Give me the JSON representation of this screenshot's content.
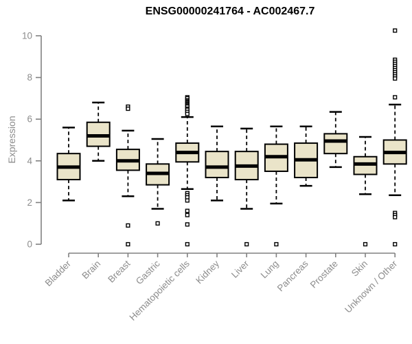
{
  "chart_data": {
    "type": "boxplot",
    "title": "ENSG00000241764 - AC002467.7",
    "ylabel": "Expression",
    "xlabel": "",
    "ylim": [
      0,
      10
    ],
    "yticks": [
      0,
      2,
      4,
      6,
      8,
      10
    ],
    "grid": false,
    "legend": "none",
    "background": "#ffffff",
    "colors": {
      "box_fill": "#eae4c9",
      "box_border": "#000000",
      "median": "#000000",
      "whisker": "#000000",
      "outlier_stroke": "#000000",
      "outlier_fill": "#ffffff",
      "axis": "#808080",
      "tick_label": "#8c8c8c",
      "title": "#000000"
    },
    "categories": [
      "Bladder",
      "Brain",
      "Breast",
      "Gastric",
      "Hematopoietic cells",
      "Kidney",
      "Liver",
      "Lung",
      "Pancreas",
      "Prostate",
      "Skin",
      "Unknown / Other"
    ],
    "boxes": [
      {
        "category": "Bladder",
        "whisker_low": 2.1,
        "q1": 3.1,
        "median": 3.7,
        "q3": 4.35,
        "whisker_high": 5.6,
        "outliers": []
      },
      {
        "category": "Brain",
        "whisker_low": 4.0,
        "q1": 4.7,
        "median": 5.2,
        "q3": 5.85,
        "whisker_high": 6.8,
        "outliers": []
      },
      {
        "category": "Breast",
        "whisker_low": 2.3,
        "q1": 3.55,
        "median": 4.0,
        "q3": 4.55,
        "whisker_high": 5.45,
        "outliers": [
          6.6,
          6.5,
          0.9,
          0
        ]
      },
      {
        "category": "Gastric",
        "whisker_low": 1.7,
        "q1": 2.85,
        "median": 3.4,
        "q3": 3.85,
        "whisker_high": 5.05,
        "outliers": [
          1.0
        ]
      },
      {
        "category": "Hematopoietic cells",
        "whisker_low": 2.65,
        "q1": 3.95,
        "median": 4.4,
        "q3": 4.85,
        "whisker_high": 6.1,
        "outliers": [
          7.05,
          7.0,
          6.9,
          6.85,
          6.8,
          6.75,
          6.7,
          6.65,
          6.6,
          6.5,
          6.45,
          6.35,
          6.25,
          2.45,
          2.35,
          2.25,
          2.1,
          1.6,
          1.4,
          0.95,
          0
        ]
      },
      {
        "category": "Kidney",
        "whisker_low": 2.1,
        "q1": 3.2,
        "median": 3.7,
        "q3": 4.45,
        "whisker_high": 5.65,
        "outliers": []
      },
      {
        "category": "Liver",
        "whisker_low": 1.7,
        "q1": 3.1,
        "median": 3.75,
        "q3": 4.45,
        "whisker_high": 5.55,
        "outliers": [
          0
        ]
      },
      {
        "category": "Lung",
        "whisker_low": 1.95,
        "q1": 3.5,
        "median": 4.2,
        "q3": 4.8,
        "whisker_high": 5.65,
        "outliers": [
          0
        ]
      },
      {
        "category": "Pancreas",
        "whisker_low": 2.8,
        "q1": 3.2,
        "median": 4.05,
        "q3": 4.85,
        "whisker_high": 5.65,
        "outliers": []
      },
      {
        "category": "Prostate",
        "whisker_low": 3.7,
        "q1": 4.35,
        "median": 4.95,
        "q3": 5.3,
        "whisker_high": 6.35,
        "outliers": []
      },
      {
        "category": "Skin",
        "whisker_low": 2.4,
        "q1": 3.35,
        "median": 3.85,
        "q3": 4.2,
        "whisker_high": 5.15,
        "outliers": [
          0
        ]
      },
      {
        "category": "Unknown / Other",
        "whisker_low": 2.35,
        "q1": 3.85,
        "median": 4.4,
        "q3": 5.0,
        "whisker_high": 6.7,
        "outliers": [
          10.25,
          8.85,
          8.75,
          8.65,
          8.55,
          8.45,
          8.35,
          8.25,
          8.15,
          8.05,
          7.95,
          7.05,
          1.5,
          1.4,
          1.3,
          0
        ]
      }
    ]
  }
}
